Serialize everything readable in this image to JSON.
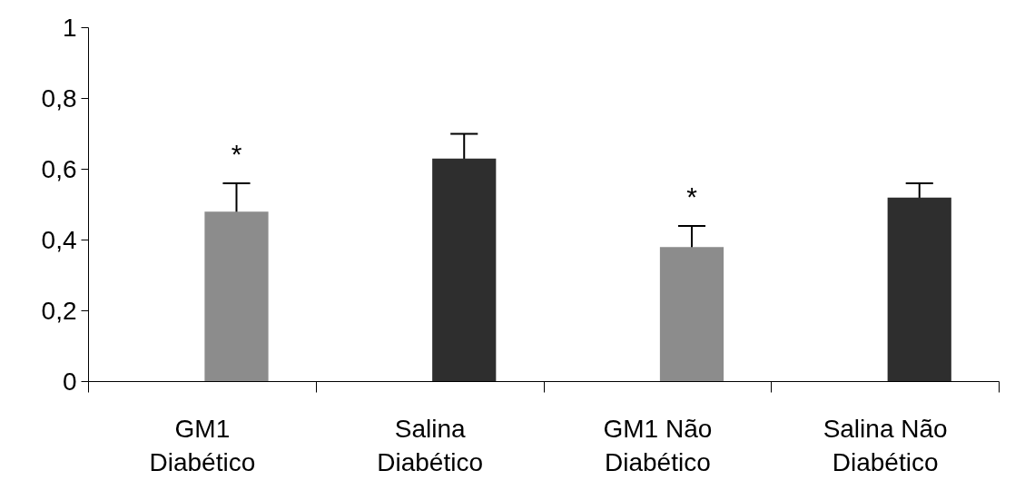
{
  "chart_data": {
    "type": "bar",
    "categories": [
      "GM1 Diabético",
      "Salina Diabético",
      "GM1 Não Diabético",
      "Salina Não Diabético"
    ],
    "values": [
      0.48,
      0.63,
      0.38,
      0.52
    ],
    "errors": [
      0.08,
      0.07,
      0.06,
      0.04
    ],
    "colors": [
      "#8c8c8c",
      "#2e2e2e",
      "#8c8c8c",
      "#2e2e2e"
    ],
    "ylim": [
      0,
      1
    ],
    "yticks": [
      0,
      {
        "value": 0.2,
        "label": "0,2"
      },
      {
        "value": 0.4,
        "label": "0,4"
      },
      {
        "value": 0.6,
        "label": "0,6"
      },
      {
        "value": 0.8,
        "label": "0,8"
      },
      1
    ],
    "value_labels": [
      "*",
      null,
      "*",
      null
    ],
    "grid": false
  }
}
